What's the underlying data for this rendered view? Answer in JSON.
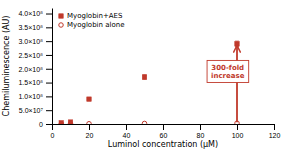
{
  "chart_data": {
    "type": "scatter",
    "x_label": "Luminol concentration (μM)",
    "y_label": "Chemiluminescence (AU)",
    "x": [
      5,
      10,
      20,
      50,
      100
    ],
    "series": [
      {
        "name": "Myoglobin+AES",
        "color": "#c0392b",
        "marker": "square",
        "values": [
          4500000.0,
          7000000.0,
          90000000.0,
          170000000.0,
          290000000.0
        ],
        "errors": [
          1000000.0,
          1000000.0,
          5000000.0,
          8000000.0,
          10000000.0
        ]
      },
      {
        "name": "Myoglobin alone",
        "color": "#c0392b",
        "marker": "open-circle",
        "values": [
          500000.0,
          800000.0,
          1000000.0,
          2000000.0,
          3000000.0
        ]
      }
    ],
    "xlim": [
      0,
      120
    ],
    "xticks": [
      0,
      20,
      40,
      60,
      80,
      100,
      120
    ],
    "ylim": [
      0,
      420000000.0
    ],
    "yticks": [
      0,
      {
        "value": 50000000.0,
        "label": "5.0×10⁷"
      },
      {
        "value": 100000000.0,
        "label": "1.0×10⁸"
      },
      {
        "value": 150000000.0,
        "label": "1.5×10⁸"
      },
      {
        "value": 200000000.0,
        "label": "2.0×10⁸"
      },
      {
        "value": 250000000.0,
        "label": "2.5×10⁸"
      },
      {
        "value": 300000000.0,
        "label": "3.0×10⁸"
      },
      {
        "value": 350000000.0,
        "label": "3.5×10⁸"
      },
      {
        "value": 400000000.0,
        "label": "4.0×10⁸"
      }
    ],
    "grid": false,
    "legend": "upper-left",
    "annotations": [
      {
        "text": "300-fold\nincrease",
        "color": "#c0392b",
        "x": 95,
        "y": 190000000.0,
        "arrow": {
          "x": 100,
          "y_start": 6000000.0,
          "y_end": 282000000.0
        }
      }
    ]
  }
}
